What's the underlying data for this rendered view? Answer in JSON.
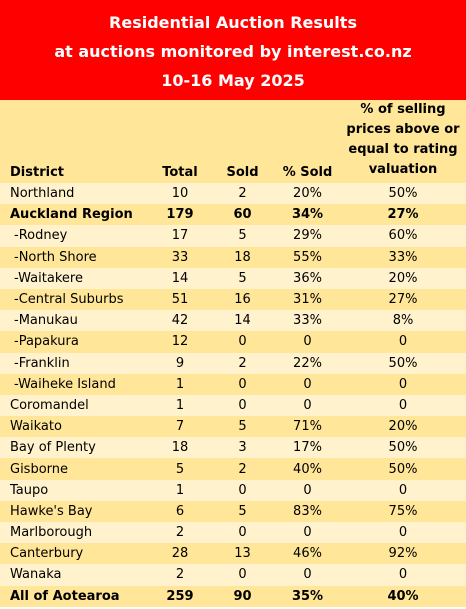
{
  "header": {
    "line1": "Residential Auction Results",
    "line2": "at auctions monitored by interest.co.nz",
    "line3": "10-16 May 2025"
  },
  "columns": {
    "district": "District",
    "total": "Total",
    "sold": "Sold",
    "pct_sold": "% Sold",
    "valuation_l1": "% of selling",
    "valuation_l2": "prices above or",
    "valuation_l3": "equal to rating",
    "valuation_l4": "valuation"
  },
  "rows": [
    {
      "district": "Northland",
      "total": "10",
      "sold": "2",
      "pct_sold": "20%",
      "valuation": "50%"
    },
    {
      "district": "Auckland Region",
      "total": "179",
      "sold": "60",
      "pct_sold": "34%",
      "valuation": "27%"
    },
    {
      "district": "-Rodney",
      "total": "17",
      "sold": "5",
      "pct_sold": "29%",
      "valuation": "60%"
    },
    {
      "district": "-North Shore",
      "total": "33",
      "sold": "18",
      "pct_sold": "55%",
      "valuation": "33%"
    },
    {
      "district": "-Waitakere",
      "total": "14",
      "sold": "5",
      "pct_sold": "36%",
      "valuation": "20%"
    },
    {
      "district": "-Central Suburbs",
      "total": "51",
      "sold": "16",
      "pct_sold": "31%",
      "valuation": "27%"
    },
    {
      "district": "-Manukau",
      "total": "42",
      "sold": "14",
      "pct_sold": "33%",
      "valuation": "8%"
    },
    {
      "district": "-Papakura",
      "total": "12",
      "sold": "0",
      "pct_sold": "0",
      "valuation": "0"
    },
    {
      "district": "-Franklin",
      "total": "9",
      "sold": "2",
      "pct_sold": "22%",
      "valuation": "50%"
    },
    {
      "district": "-Waiheke Island",
      "total": "1",
      "sold": "0",
      "pct_sold": "0",
      "valuation": "0"
    },
    {
      "district": "Coromandel",
      "total": "1",
      "sold": "0",
      "pct_sold": "0",
      "valuation": "0"
    },
    {
      "district": "Waikato",
      "total": "7",
      "sold": "5",
      "pct_sold": "71%",
      "valuation": "20%"
    },
    {
      "district": "Bay of Plenty",
      "total": "18",
      "sold": "3",
      "pct_sold": "17%",
      "valuation": "50%"
    },
    {
      "district": "Gisborne",
      "total": "5",
      "sold": "2",
      "pct_sold": "40%",
      "valuation": "50%"
    },
    {
      "district": "Taupo",
      "total": "1",
      "sold": "0",
      "pct_sold": "0",
      "valuation": "0"
    },
    {
      "district": "Hawke's Bay",
      "total": "6",
      "sold": "5",
      "pct_sold": "83%",
      "valuation": "75%"
    },
    {
      "district": "Marlborough",
      "total": "2",
      "sold": "0",
      "pct_sold": "0",
      "valuation": "0"
    },
    {
      "district": "Canterbury",
      "total": "28",
      "sold": "13",
      "pct_sold": "46%",
      "valuation": "92%"
    },
    {
      "district": "Wanaka",
      "total": "2",
      "sold": "0",
      "pct_sold": "0",
      "valuation": "0"
    },
    {
      "district": "All of Aotearoa",
      "total": "259",
      "sold": "90",
      "pct_sold": "35%",
      "valuation": "40%"
    }
  ],
  "colors": {
    "header_bg": "#ff0000",
    "row_light": "#fff2cc",
    "row_dark": "#ffe699"
  }
}
